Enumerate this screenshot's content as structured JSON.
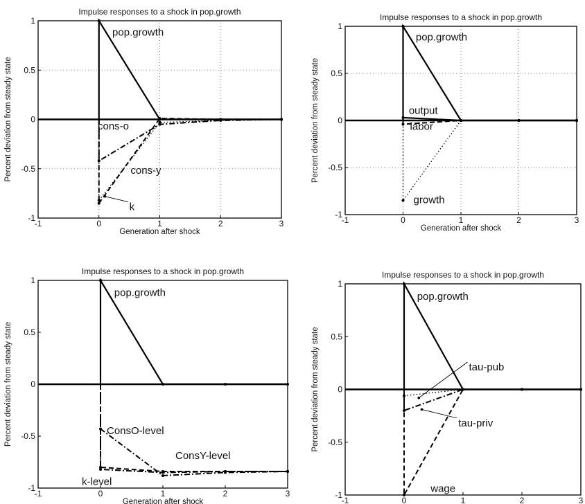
{
  "chart_data": [
    {
      "type": "line",
      "title": "Impulse responses to a shock in pop.growth",
      "xlabel": "Generation after shock",
      "ylabel": "Percent deviation from steady state",
      "xlim": [
        -1,
        3
      ],
      "ylim": [
        -1,
        1
      ],
      "xticks": [
        -1,
        0,
        1,
        2,
        3
      ],
      "yticks": [
        -1,
        -0.5,
        0,
        0.5,
        1
      ],
      "ytick_labels": [
        "-1",
        "-0.5",
        "0",
        "0.5",
        "1"
      ],
      "grid": true,
      "series": [
        {
          "name": "pop.growth",
          "style": "solid",
          "x": [
            0,
            0,
            1,
            2,
            3
          ],
          "y": [
            0,
            1,
            0,
            0,
            0
          ]
        },
        {
          "name": "cons-o",
          "style": "dashdot",
          "x": [
            0,
            0,
            1,
            2,
            3
          ],
          "y": [
            0,
            -0.42,
            -0.05,
            -0.01,
            0
          ]
        },
        {
          "name": "cons-y",
          "style": "dotted",
          "x": [
            0,
            0,
            1,
            2,
            3
          ],
          "y": [
            0,
            -0.82,
            -0.03,
            -0.01,
            0
          ]
        },
        {
          "name": "k",
          "style": "dashed",
          "x": [
            0,
            0,
            1,
            2,
            3
          ],
          "y": [
            0,
            -0.85,
            0.01,
            0,
            0
          ]
        }
      ],
      "annotations": [
        {
          "text": "pop.growth",
          "x": 0.22,
          "y": 0.85
        },
        {
          "text": "cons-o",
          "x": -0.02,
          "y": -0.1
        },
        {
          "text": "cons-y",
          "x": 0.52,
          "y": -0.55
        },
        {
          "text": "k",
          "x": 0.5,
          "y": -0.92,
          "arrow_to": [
            0.1,
            -0.78
          ]
        }
      ]
    },
    {
      "type": "line",
      "title": "Impulse responses to a shock in pop.growth",
      "xlabel": "Generation after shock",
      "ylabel": "Percent deviation from steady state",
      "xlim": [
        -1,
        3
      ],
      "ylim": [
        -1,
        1
      ],
      "xticks": [
        -1,
        0,
        1,
        2,
        3
      ],
      "yticks": [
        -1,
        -0.5,
        0,
        0.5,
        1
      ],
      "ytick_labels": [
        "-1",
        "-0.5",
        "0",
        "0.5",
        "1"
      ],
      "grid": true,
      "series": [
        {
          "name": "pop.growth",
          "style": "solid",
          "x": [
            0,
            0,
            1,
            2,
            3
          ],
          "y": [
            0,
            1,
            0,
            0,
            0
          ]
        },
        {
          "name": "output",
          "style": "solid",
          "x": [
            0,
            0,
            1,
            2,
            3
          ],
          "y": [
            0,
            0.03,
            0,
            0,
            0
          ]
        },
        {
          "name": "labor",
          "style": "dashed",
          "x": [
            0,
            0,
            1,
            2,
            3
          ],
          "y": [
            0,
            -0.04,
            0,
            0,
            0
          ]
        },
        {
          "name": "growth",
          "style": "dotted",
          "x": [
            0,
            0,
            1,
            2,
            3
          ],
          "y": [
            0,
            -0.85,
            0,
            0,
            0
          ]
        }
      ],
      "annotations": [
        {
          "text": "pop.growth",
          "x": 0.22,
          "y": 0.85
        },
        {
          "text": "output",
          "x": 0.1,
          "y": 0.07
        },
        {
          "text": "labor",
          "x": 0.12,
          "y": -0.1
        },
        {
          "text": "growth",
          "x": 0.18,
          "y": -0.88
        }
      ]
    },
    {
      "type": "line",
      "title": "Impulse responses to a shock in pop.growth",
      "xlabel": "Generation after shock",
      "ylabel": "Percent deviation from steady state",
      "xlim": [
        -1,
        3
      ],
      "ylim": [
        -1,
        1
      ],
      "xticks": [
        -1,
        0,
        1,
        2,
        3
      ],
      "yticks": [
        -1,
        -0.5,
        0,
        0.5,
        1
      ],
      "ytick_labels": [
        "-1",
        "-0.5",
        "0",
        "0.5",
        "1"
      ],
      "grid": false,
      "series": [
        {
          "name": "pop.growth",
          "style": "solid",
          "x": [
            0,
            0,
            1,
            2,
            3
          ],
          "y": [
            0,
            1,
            0,
            0,
            0
          ]
        },
        {
          "name": "ConsO-level",
          "style": "dashdot",
          "x": [
            0,
            0,
            1,
            2,
            3
          ],
          "y": [
            0,
            -0.43,
            -0.88,
            -0.85,
            -0.84
          ]
        },
        {
          "name": "ConsY-level",
          "style": "dashed",
          "x": [
            0,
            0,
            1,
            2,
            3
          ],
          "y": [
            0,
            -0.8,
            -0.84,
            -0.84,
            -0.84
          ]
        },
        {
          "name": "k-level",
          "style": "dashdot",
          "x": [
            0,
            0,
            1,
            2,
            3
          ],
          "y": [
            0,
            -0.82,
            -0.85,
            -0.84,
            -0.84
          ]
        }
      ],
      "annotations": [
        {
          "text": "pop.growth",
          "x": 0.22,
          "y": 0.85
        },
        {
          "text": "ConsO-level",
          "x": 0.1,
          "y": -0.48
        },
        {
          "text": "ConsY-level",
          "x": 1.2,
          "y": -0.72
        },
        {
          "text": "k-level",
          "x": -0.3,
          "y": -0.97
        }
      ]
    },
    {
      "type": "line",
      "title": "Impulse responses to a shock in pop.growth",
      "xlabel": "Generation after shock",
      "ylabel": "Percent deviation from steady state",
      "xlim": [
        -1,
        3
      ],
      "ylim": [
        -1,
        1
      ],
      "xticks": [
        -1,
        0,
        1,
        2,
        3
      ],
      "yticks": [
        -1,
        -0.5,
        0,
        0.5,
        1
      ],
      "ytick_labels": [
        "-1",
        "-0.5",
        "0",
        "0.5",
        "1"
      ],
      "grid": false,
      "series": [
        {
          "name": "pop.growth",
          "style": "solid",
          "x": [
            0,
            0,
            1,
            2,
            3
          ],
          "y": [
            0,
            1,
            0,
            0,
            0
          ]
        },
        {
          "name": "tau-pub",
          "style": "dotted",
          "x": [
            0,
            0,
            1,
            2,
            3
          ],
          "y": [
            0,
            -0.06,
            0,
            0,
            0
          ]
        },
        {
          "name": "tau-priv",
          "style": "dashdot",
          "x": [
            0,
            0,
            1,
            2,
            3
          ],
          "y": [
            0,
            -0.2,
            0,
            0,
            0
          ]
        },
        {
          "name": "wage",
          "style": "dashed",
          "x": [
            0,
            0,
            1,
            2,
            3
          ],
          "y": [
            0,
            -1,
            0,
            0,
            0
          ]
        }
      ],
      "annotations": [
        {
          "text": "pop.growth",
          "x": 0.22,
          "y": 0.85
        },
        {
          "text": "tau-pub",
          "x": 1.1,
          "y": 0.18,
          "arrow_to": [
            0.25,
            -0.08
          ]
        },
        {
          "text": "tau-priv",
          "x": 0.92,
          "y": -0.35,
          "arrow_to": [
            0.3,
            -0.19
          ]
        },
        {
          "text": "wage",
          "x": 0.45,
          "y": -0.97
        }
      ]
    }
  ]
}
